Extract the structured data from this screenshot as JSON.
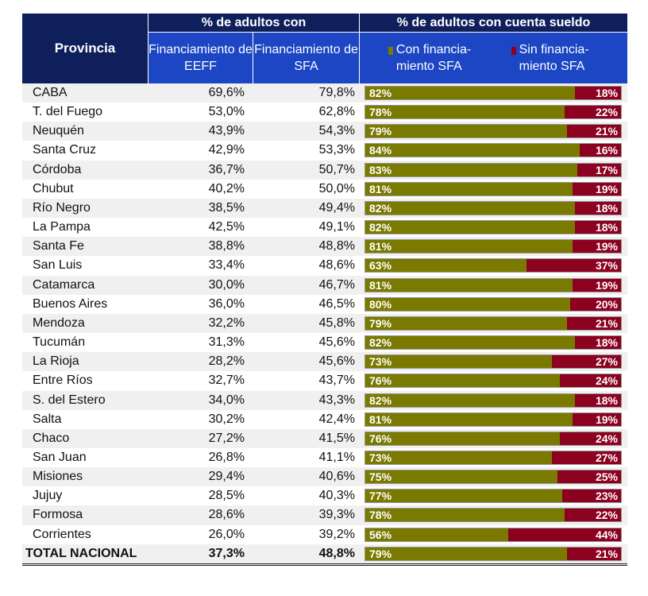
{
  "header": {
    "provincia": "Provincia",
    "group1": "% de adultos con",
    "col_eeff": "Financiamiento de EEFF",
    "col_sfa": "Financiamiento de SFA",
    "group2": "% de adultos con cuenta sueldo",
    "legend_con": "Con financia-miento SFA",
    "legend_sin": "Sin financia-miento SFA"
  },
  "colors": {
    "header_dark": "#0f1f5c",
    "header_blue": "#1c46c4",
    "con": "#7a7a00",
    "sin": "#8c0020"
  },
  "chart_data": {
    "type": "table",
    "columns": [
      "Provincia",
      "Financiamiento de EEFF",
      "Financiamiento de SFA",
      "Con financiamiento SFA",
      "Sin financiamiento SFA"
    ],
    "rows": [
      [
        "CABA",
        "69,6%",
        "79,8%",
        82,
        18
      ],
      [
        "T. del Fuego",
        "53,0%",
        "62,8%",
        78,
        22
      ],
      [
        "Neuquén",
        "43,9%",
        "54,3%",
        79,
        21
      ],
      [
        "Santa Cruz",
        "42,9%",
        "53,3%",
        84,
        16
      ],
      [
        "Córdoba",
        "36,7%",
        "50,7%",
        83,
        17
      ],
      [
        "Chubut",
        "40,2%",
        "50,0%",
        81,
        19
      ],
      [
        "Río Negro",
        "38,5%",
        "49,4%",
        82,
        18
      ],
      [
        "La Pampa",
        "42,5%",
        "49,1%",
        82,
        18
      ],
      [
        "Santa Fe",
        "38,8%",
        "48,8%",
        81,
        19
      ],
      [
        "San Luis",
        "33,4%",
        "48,6%",
        63,
        37
      ],
      [
        "Catamarca",
        "30,0%",
        "46,7%",
        81,
        19
      ],
      [
        "Buenos Aires",
        "36,0%",
        "46,5%",
        80,
        20
      ],
      [
        "Mendoza",
        "32,2%",
        "45,8%",
        79,
        21
      ],
      [
        "Tucumán",
        "31,3%",
        "45,6%",
        82,
        18
      ],
      [
        "La Rioja",
        "28,2%",
        "45,6%",
        73,
        27
      ],
      [
        "Entre Ríos",
        "32,7%",
        "43,7%",
        76,
        24
      ],
      [
        "S. del Estero",
        "34,0%",
        "43,3%",
        82,
        18
      ],
      [
        "Salta",
        "30,2%",
        "42,4%",
        81,
        19
      ],
      [
        "Chaco",
        "27,2%",
        "41,5%",
        76,
        24
      ],
      [
        "San Juan",
        "26,8%",
        "41,1%",
        73,
        27
      ],
      [
        "Misiones",
        "29,4%",
        "40,6%",
        75,
        25
      ],
      [
        "Jujuy",
        "28,5%",
        "40,3%",
        77,
        23
      ],
      [
        "Formosa",
        "28,6%",
        "39,3%",
        78,
        22
      ],
      [
        "Corrientes",
        "26,0%",
        "39,2%",
        56,
        44
      ]
    ],
    "total": [
      "TOTAL NACIONAL",
      "37,3%",
      "48,8%",
      79,
      21
    ]
  }
}
